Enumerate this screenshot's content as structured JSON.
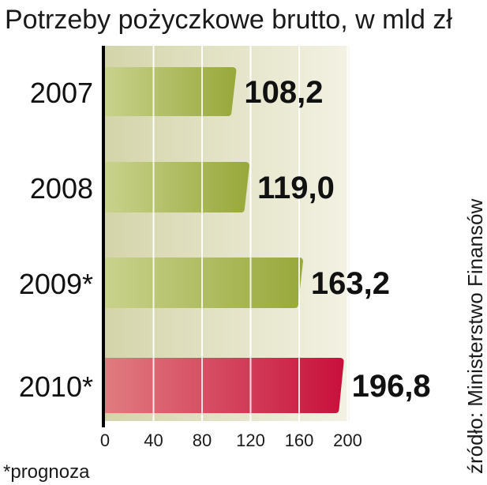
{
  "chart_data": {
    "type": "bar",
    "orientation": "horizontal",
    "title": "Potrzeby pożyczkowe brutto, w mld zł",
    "categories": [
      "2007",
      "2008",
      "2009*",
      "2010*"
    ],
    "values": [
      108.2,
      119.0,
      163.2,
      196.8
    ],
    "value_labels": [
      "108,2",
      "119,0",
      "163,2",
      "196,8"
    ],
    "xlim": [
      0,
      200
    ],
    "xticks": [
      0,
      40,
      80,
      120,
      160,
      200
    ],
    "grid": true,
    "colors": {
      "actual_light": "#c9d28c",
      "actual_dark": "#98a83a",
      "forecast_light": "#e07c80",
      "forecast_dark": "#c8103c",
      "forecast_label": "#b8103c",
      "background_light": "#f3f2e4",
      "background_dark": "#d4d4aa",
      "axis": "#000000",
      "grid": "#ffffff"
    },
    "highlighted_index": 3
  },
  "footnote": "*prognoza",
  "source": "źródło: Ministerstwo Finansów"
}
